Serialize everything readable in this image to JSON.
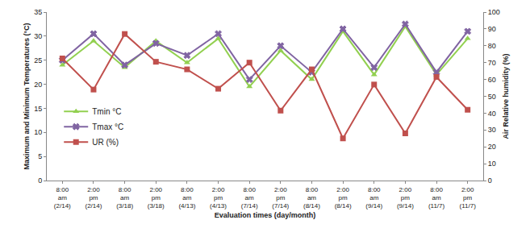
{
  "chart_data": {
    "type": "line",
    "x_label": "Evaluation times (day/month)",
    "y_label": "Maximum and Minimum Temperatures (°C)",
    "y2_label": "Air Relative humidity (%)",
    "categories": [
      "8:00 am (2/14)",
      "2:00 pm (2/14)",
      "8:00 am (3/18)",
      "2:00 pm (3/18)",
      "8:00 am (4/13)",
      "2:00 pm (4/13)",
      "8:00 am (7/14)",
      "2:00 pm (7/14)",
      "8:00 am (8/14)",
      "2:00 pm (8/14)",
      "8:00 am (9/14)",
      "2:00 pm (9/14)",
      "8:00 am (11/7)",
      "2:00 pm (11/7)"
    ],
    "series": [
      {
        "name": "Tmin °C",
        "color": "#92d050",
        "marker": "triangle-up",
        "values": [
          24,
          29,
          23.5,
          29,
          24.5,
          29.5,
          19.5,
          27,
          21,
          31,
          22,
          32,
          22,
          29.5
        ]
      },
      {
        "name": "Tmax °C",
        "color": "#8064a2",
        "marker": "x",
        "values": [
          25,
          30.5,
          24,
          28.5,
          26,
          30.5,
          21,
          28,
          22.5,
          31.5,
          23.5,
          32.5,
          22.5,
          31
        ]
      },
      {
        "name": "UR (%)",
        "color": "#c0504d",
        "marker": "square",
        "axis": "y2",
        "values": [
          72.5,
          54,
          87,
          70.5,
          66,
          54.5,
          70,
          41.5,
          66,
          25,
          57,
          28,
          61.5,
          42
        ]
      }
    ],
    "ylim": [
      0,
      35
    ],
    "yticks": [
      0,
      5,
      10,
      15,
      20,
      25,
      30,
      35
    ],
    "y2lim": [
      0,
      100
    ],
    "y2ticks": [
      0,
      10,
      20,
      30,
      40,
      50,
      60,
      70,
      80,
      90,
      100
    ],
    "grid": false,
    "legend": "left"
  }
}
